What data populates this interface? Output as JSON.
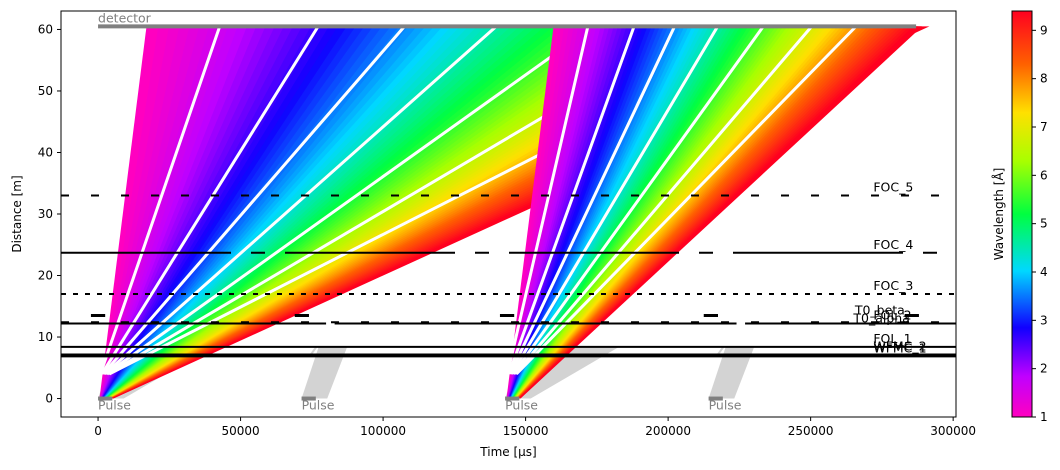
{
  "chart_data": {
    "type": "line",
    "xlabel": "Time [µs]",
    "ylabel": "Distance [m]",
    "xlim": [
      -13000,
      301000
    ],
    "ylim": [
      -3,
      63
    ],
    "xticks": [
      0,
      50000,
      100000,
      150000,
      200000,
      250000,
      300000
    ],
    "xtick_labels": [
      "0",
      "50000",
      "100000",
      "150000",
      "200000",
      "250000",
      "300000"
    ],
    "yticks": [
      0,
      10,
      20,
      30,
      40,
      50,
      60
    ],
    "ytick_labels": [
      "0",
      "10",
      "20",
      "30",
      "40",
      "50",
      "60"
    ],
    "colorbar": {
      "label": "Wavelength [Å]",
      "range": [
        1,
        9.4
      ],
      "ticks": [
        1,
        2,
        3,
        4,
        5,
        6,
        7,
        8,
        9
      ],
      "tick_labels": [
        "1",
        "2",
        "3",
        "4",
        "5",
        "6",
        "7",
        "8",
        "9"
      ],
      "colormap": "gist_rainbow_r"
    },
    "detector": {
      "label": "detector",
      "distance": 60.5,
      "t_start": 0,
      "t_end": 287000,
      "color": "#808080"
    },
    "pulses": [
      {
        "label": "Pulse",
        "t_start": 0,
        "t_end": 5000,
        "emitted": true,
        "frame_end_time": 286000
      },
      {
        "label": "Pulse",
        "t_start": 71400,
        "t_end": 76400,
        "emitted": false
      },
      {
        "label": "Pulse",
        "t_start": 142800,
        "t_end": 147800,
        "emitted": true,
        "frame_end_time": 286000
      },
      {
        "label": "Pulse",
        "t_start": 214200,
        "t_end": 219200,
        "emitted": false
      }
    ],
    "choppers": [
      {
        "label": "WFMC_1",
        "distance": 6.85,
        "style": "solid",
        "closed": []
      },
      {
        "label": "WFMC_2",
        "distance": 7.15,
        "style": "solid",
        "closed": []
      },
      {
        "label": "FOL_1",
        "distance": 8.4,
        "style": "solid",
        "closed": []
      },
      {
        "label": "FOL_2",
        "distance": 12.2,
        "style": "solid",
        "closed": [
          [
            80000,
            83000
          ],
          [
            224000,
            227000
          ]
        ]
      },
      {
        "label": "T0_alpha",
        "distance": 12.4,
        "style": "dashed",
        "closed": []
      },
      {
        "label": "T0_beta",
        "distance": 13.5,
        "style": "short",
        "closed": []
      },
      {
        "label": "FOC_3",
        "distance": 17.0,
        "style": "dotted",
        "closed": []
      },
      {
        "label": "FOC_4",
        "distance": 23.7,
        "style": "dashdot",
        "closed": []
      },
      {
        "label": "FOC_5",
        "distance": 33.0,
        "style": "dashed",
        "closed": []
      }
    ]
  }
}
